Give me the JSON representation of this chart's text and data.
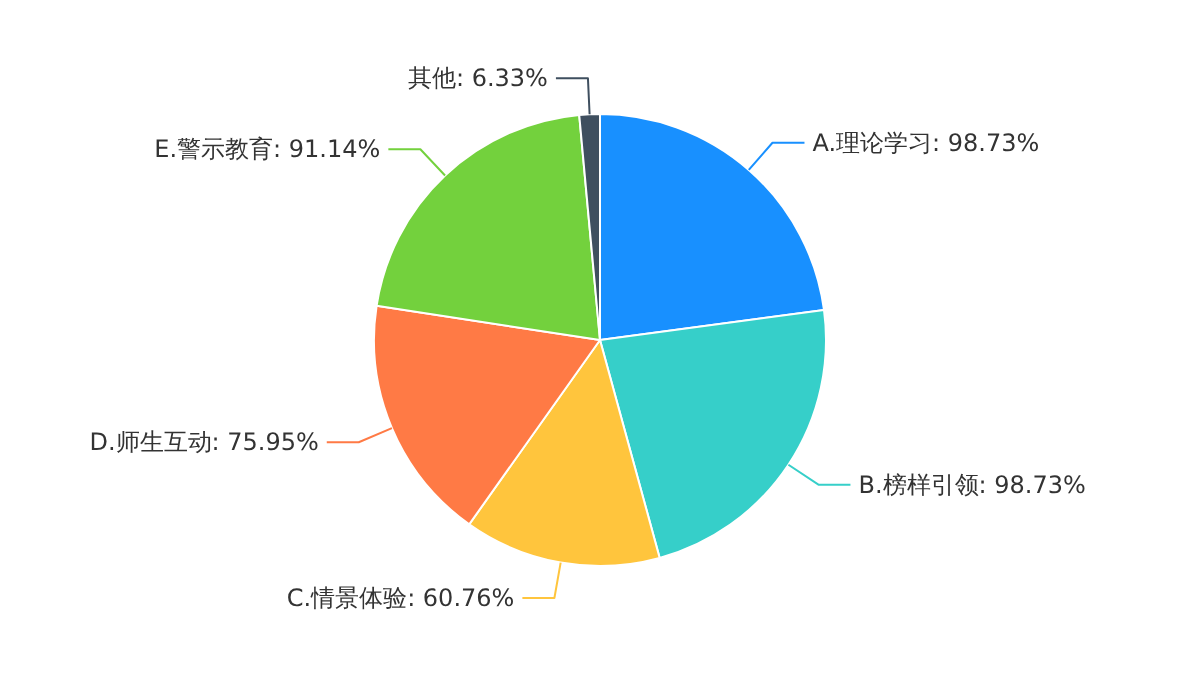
{
  "chart_data": {
    "type": "pie",
    "categories": [
      "A.理论学习",
      "B.榜样引领",
      "C.情景体验",
      "D.师生互动",
      "E.警示教育",
      "其他"
    ],
    "values": [
      98.73,
      98.73,
      60.76,
      75.95,
      91.14,
      6.33
    ],
    "value_labels": [
      "98.73%",
      "98.73%",
      "60.76%",
      "75.95%",
      "91.14%",
      "6.33%"
    ],
    "colors": [
      "#1890ff",
      "#36cfc9",
      "#ffc53d",
      "#ff7a45",
      "#73d13d",
      "#3f4f5f"
    ],
    "legend": false
  }
}
